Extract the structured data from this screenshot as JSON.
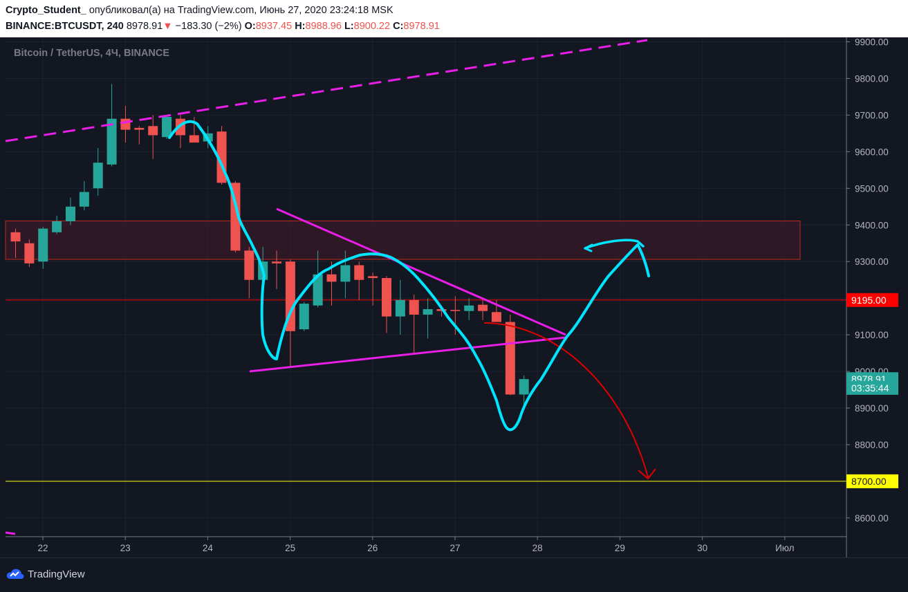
{
  "header": {
    "author": "Crypto_Student_",
    "published": "опубликовал(а) на TradingView.com, Июнь 27, 2020 23:24:18 MSK",
    "symbol": "BINANCE:BTCUSDT, 240",
    "last": "8978.91",
    "change": "−183.30 (−2%)",
    "o_label": "O:",
    "o": "8937.45",
    "h_label": "H:",
    "h": "8988.96",
    "l_label": "L:",
    "l": "8900.22",
    "c_label": "C:",
    "c": "8978.91"
  },
  "chart_title": "Bitcoin / TetherUS, 4Ч, BINANCE",
  "footer": {
    "brand": "TradingView"
  },
  "colors": {
    "up": "#26a69a",
    "down": "#ef5350",
    "background": "#131722",
    "drawing_cyan": "#00e5ff",
    "drawing_magenta": "#e91ee8",
    "level_red": "#ff0000",
    "level_yellow": "#ffff00"
  },
  "chart_data": {
    "type": "candlestick",
    "y_ticks": [
      8600,
      8700,
      8800,
      8900,
      9000,
      9100,
      9200,
      9300,
      9400,
      9500,
      9600,
      9700,
      9800,
      9900
    ],
    "x_tick_labels": [
      "22",
      "23",
      "24",
      "25",
      "26",
      "27",
      "28",
      "29",
      "30",
      "Июл"
    ],
    "price_labels": [
      {
        "text": "9195.00",
        "value": 9195,
        "bg": "#ff0000",
        "fg": "#ffffff"
      },
      {
        "text": "8978.91",
        "value": 8978.91,
        "bg": "#26a69a",
        "fg": "#ffffff"
      },
      {
        "text": "03:35:44",
        "value": 8955,
        "bg": "#26a69a",
        "fg": "#ffffff"
      },
      {
        "text": "8700.00",
        "value": 8700,
        "bg": "#ffff00",
        "fg": "#131722"
      }
    ],
    "horizontal_levels": [
      {
        "value": 9195,
        "color": "#ff0000"
      },
      {
        "value": 8700,
        "color": "#ffff00"
      }
    ],
    "zone": {
      "top": 9411,
      "bottom": 9306
    },
    "candles": [
      {
        "o": 9380,
        "h": 9390,
        "l": 9310,
        "c": 9355
      },
      {
        "o": 9350,
        "h": 9360,
        "l": 9285,
        "c": 9295
      },
      {
        "o": 9300,
        "h": 9395,
        "l": 9280,
        "c": 9390
      },
      {
        "o": 9380,
        "h": 9425,
        "l": 9375,
        "c": 9410
      },
      {
        "o": 9410,
        "h": 9475,
        "l": 9400,
        "c": 9450
      },
      {
        "o": 9450,
        "h": 9520,
        "l": 9440,
        "c": 9490
      },
      {
        "o": 9500,
        "h": 9610,
        "l": 9480,
        "c": 9570
      },
      {
        "o": 9565,
        "h": 9785,
        "l": 9560,
        "c": 9690
      },
      {
        "o": 9690,
        "h": 9725,
        "l": 9625,
        "c": 9660
      },
      {
        "o": 9665,
        "h": 9670,
        "l": 9620,
        "c": 9660
      },
      {
        "o": 9670,
        "h": 9700,
        "l": 9580,
        "c": 9645
      },
      {
        "o": 9640,
        "h": 9700,
        "l": 9635,
        "c": 9695
      },
      {
        "o": 9690,
        "h": 9700,
        "l": 9610,
        "c": 9645
      },
      {
        "o": 9645,
        "h": 9695,
        "l": 9625,
        "c": 9625
      },
      {
        "o": 9628,
        "h": 9670,
        "l": 9610,
        "c": 9650
      },
      {
        "o": 9655,
        "h": 9670,
        "l": 9510,
        "c": 9515
      },
      {
        "o": 9515,
        "h": 9520,
        "l": 9325,
        "c": 9330
      },
      {
        "o": 9330,
        "h": 9340,
        "l": 9200,
        "c": 9250
      },
      {
        "o": 9250,
        "h": 9340,
        "l": 9200,
        "c": 9300
      },
      {
        "o": 9300,
        "h": 9330,
        "l": 9225,
        "c": 9295
      },
      {
        "o": 9300,
        "h": 9305,
        "l": 9010,
        "c": 9110
      },
      {
        "o": 9115,
        "h": 9190,
        "l": 9110,
        "c": 9185
      },
      {
        "o": 9180,
        "h": 9330,
        "l": 9175,
        "c": 9265
      },
      {
        "o": 9265,
        "h": 9300,
        "l": 9180,
        "c": 9245
      },
      {
        "o": 9245,
        "h": 9330,
        "l": 9200,
        "c": 9290
      },
      {
        "o": 9290,
        "h": 9300,
        "l": 9195,
        "c": 9250
      },
      {
        "o": 9260,
        "h": 9270,
        "l": 9180,
        "c": 9255
      },
      {
        "o": 9255,
        "h": 9260,
        "l": 9105,
        "c": 9150
      },
      {
        "o": 9150,
        "h": 9250,
        "l": 9100,
        "c": 9195
      },
      {
        "o": 9195,
        "h": 9210,
        "l": 9050,
        "c": 9155
      },
      {
        "o": 9155,
        "h": 9200,
        "l": 9090,
        "c": 9170
      },
      {
        "o": 9170,
        "h": 9180,
        "l": 9150,
        "c": 9165
      },
      {
        "o": 9168,
        "h": 9205,
        "l": 9100,
        "c": 9165
      },
      {
        "o": 9165,
        "h": 9200,
        "l": 9140,
        "c": 9180
      },
      {
        "o": 9182,
        "h": 9195,
        "l": 9140,
        "c": 9165
      },
      {
        "o": 9162,
        "h": 9195,
        "l": 9135,
        "c": 9135
      },
      {
        "o": 9135,
        "h": 9155,
        "l": 8935,
        "c": 8937
      },
      {
        "o": 8937,
        "h": 8989,
        "l": 8900,
        "c": 8979
      }
    ]
  }
}
